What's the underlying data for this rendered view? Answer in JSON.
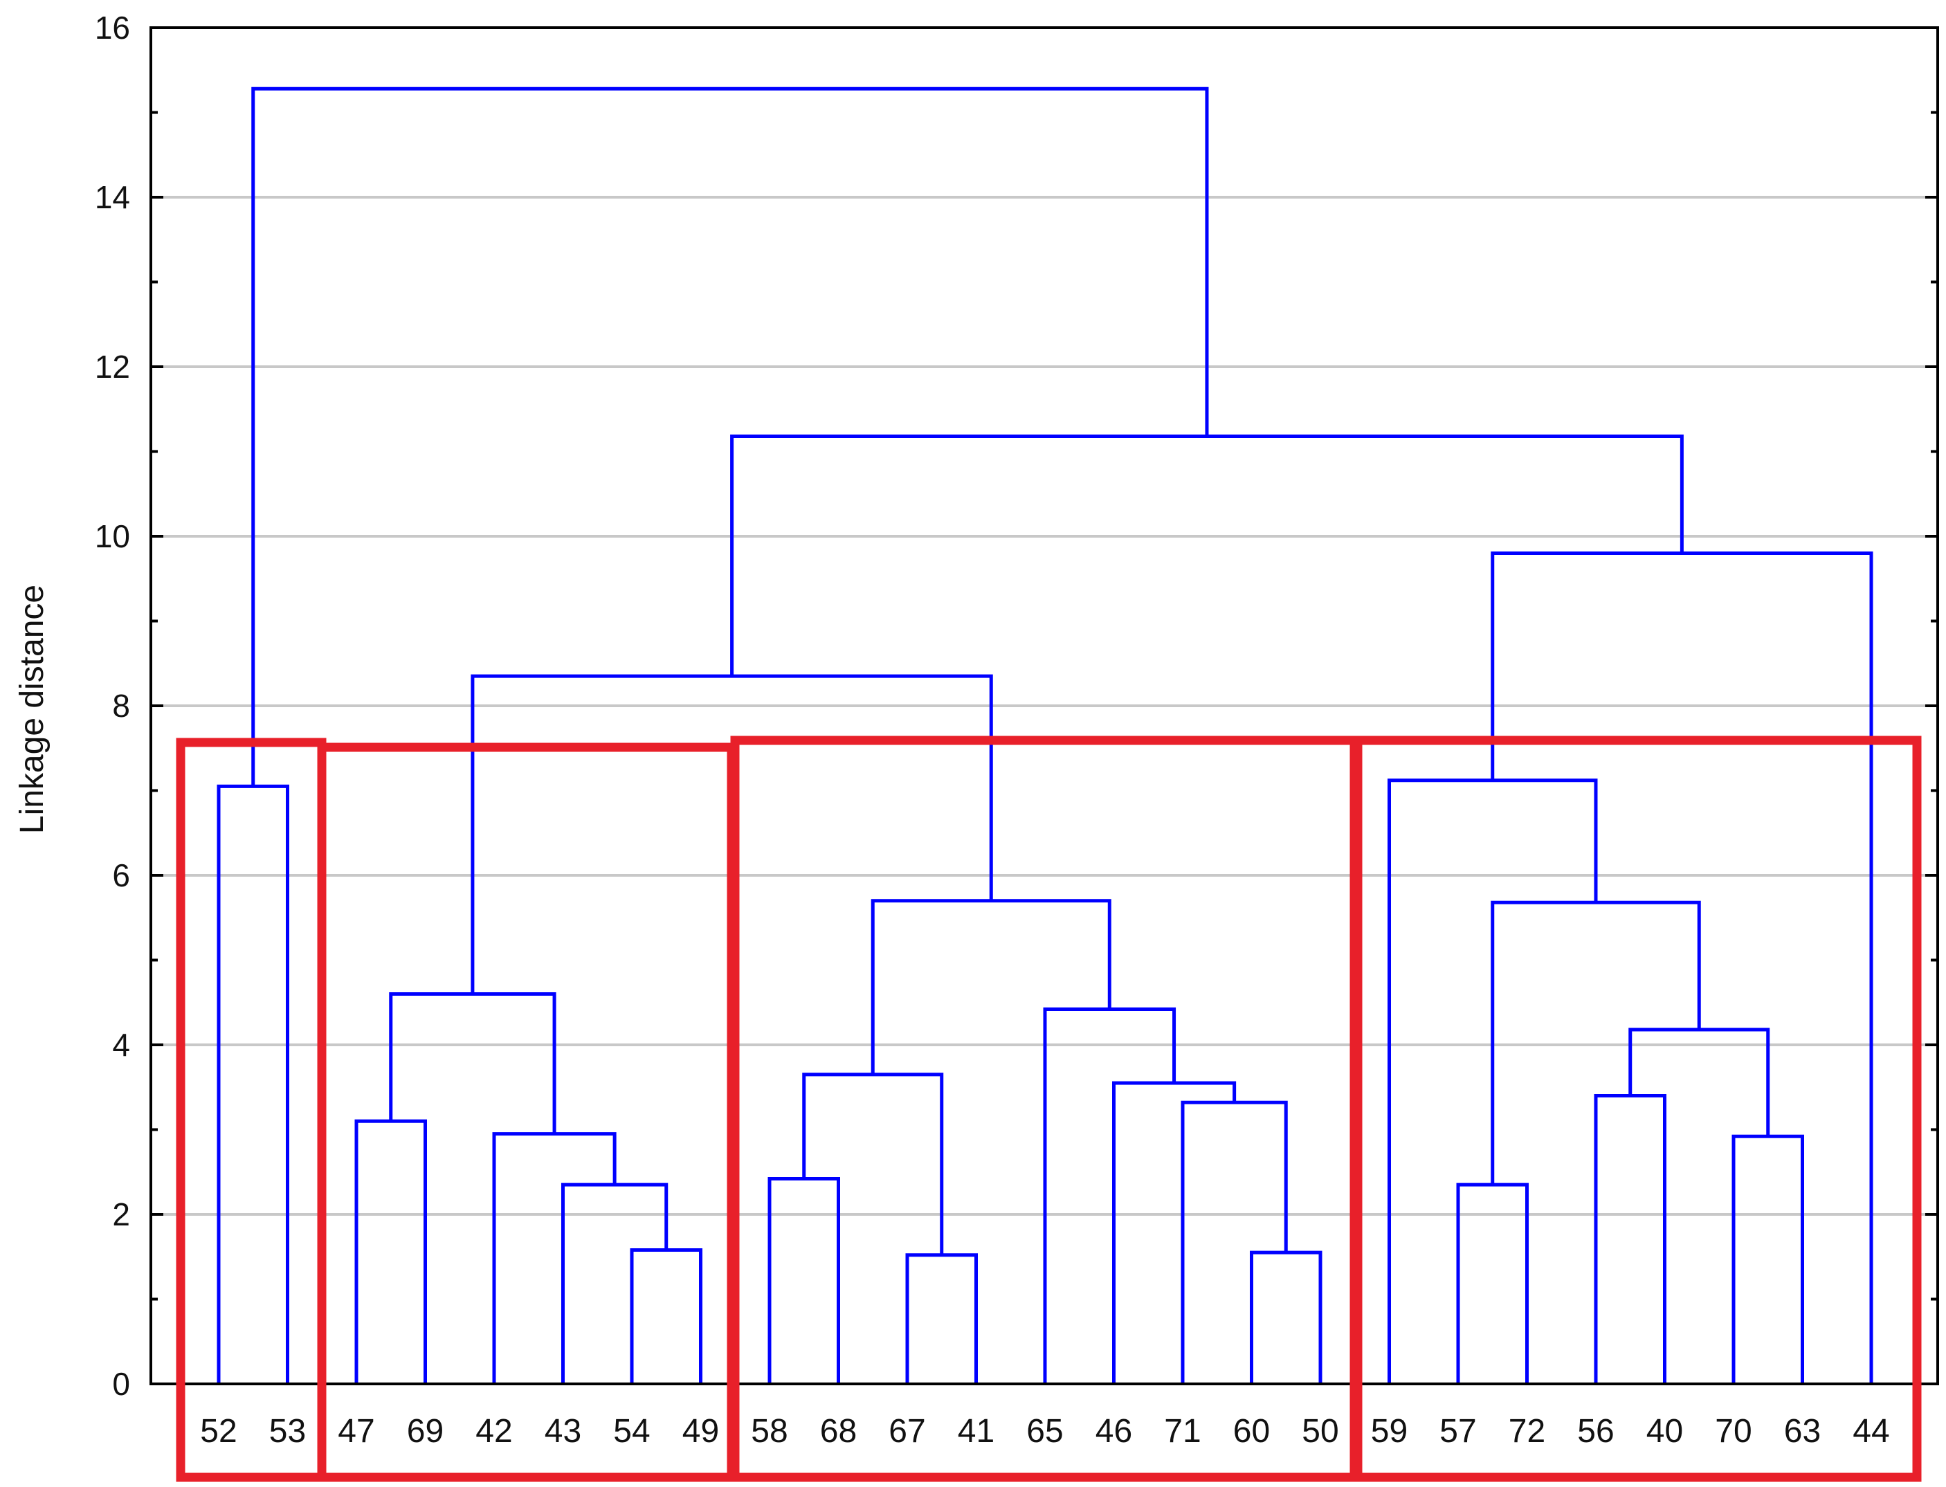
{
  "chart_data": {
    "type": "dendrogram",
    "title": "",
    "xlabel": "",
    "ylabel": "Linkage distance",
    "ylim": [
      0,
      16
    ],
    "yticks": [
      0,
      2,
      4,
      6,
      8,
      10,
      12,
      14,
      16
    ],
    "grid": true,
    "leaves": [
      "52",
      "53",
      "47",
      "69",
      "42",
      "43",
      "54",
      "49",
      "58",
      "68",
      "67",
      "41",
      "65",
      "46",
      "71",
      "60",
      "50",
      "59",
      "57",
      "72",
      "56",
      "40",
      "70",
      "63",
      "44"
    ],
    "merges": [
      {
        "id": "A",
        "left": "52",
        "right": "53",
        "height": 7.05
      },
      {
        "id": "B",
        "left": "47",
        "right": "69",
        "height": 3.1
      },
      {
        "id": "C",
        "left": "54",
        "right": "49",
        "height": 1.58
      },
      {
        "id": "D",
        "left": "43",
        "right": "C",
        "height": 2.35
      },
      {
        "id": "E",
        "left": "42",
        "right": "D",
        "height": 2.95
      },
      {
        "id": "F",
        "left": "B",
        "right": "E",
        "height": 4.6
      },
      {
        "id": "G",
        "left": "58",
        "right": "68",
        "height": 2.42
      },
      {
        "id": "H",
        "left": "67",
        "right": "41",
        "height": 1.52
      },
      {
        "id": "I",
        "left": "G",
        "right": "H",
        "height": 3.65
      },
      {
        "id": "J",
        "left": "60",
        "right": "50",
        "height": 1.55
      },
      {
        "id": "K",
        "left": "71",
        "right": "J",
        "height": 3.32
      },
      {
        "id": "L",
        "left": "46",
        "right": "K",
        "height": 3.55
      },
      {
        "id": "M",
        "left": "65",
        "right": "L",
        "height": 4.42
      },
      {
        "id": "N",
        "left": "I",
        "right": "M",
        "height": 5.7
      },
      {
        "id": "O",
        "left": "F",
        "right": "N",
        "height": 8.35
      },
      {
        "id": "P",
        "left": "57",
        "right": "72",
        "height": 2.35
      },
      {
        "id": "Q",
        "left": "56",
        "right": "40",
        "height": 3.4
      },
      {
        "id": "R",
        "left": "70",
        "right": "63",
        "height": 2.92
      },
      {
        "id": "S",
        "left": "Q",
        "right": "R",
        "height": 4.18
      },
      {
        "id": "T",
        "left": "P",
        "right": "S",
        "height": 5.68
      },
      {
        "id": "U",
        "left": "59",
        "right": "T",
        "height": 7.12
      },
      {
        "id": "V",
        "left": "U",
        "right": "44",
        "height": 9.8
      },
      {
        "id": "W",
        "left": "O",
        "right": "V",
        "height": 11.18
      },
      {
        "id": "X",
        "left": "A",
        "right": "W",
        "height": 15.28
      }
    ],
    "cluster_boxes": [
      {
        "leaves": [
          "52",
          "53"
        ]
      },
      {
        "leaves": [
          "47",
          "69",
          "42",
          "43",
          "54",
          "49"
        ]
      },
      {
        "leaves": [
          "58",
          "68",
          "67",
          "41",
          "65",
          "46",
          "71",
          "60",
          "50"
        ]
      },
      {
        "leaves": [
          "59",
          "57",
          "72",
          "56",
          "40",
          "70",
          "63",
          "44"
        ]
      }
    ],
    "colors": {
      "tree": "#0000ff",
      "grid": "#c8c8c8",
      "axis": "#000000",
      "box": "#e8202a",
      "background": "#ffffff"
    }
  }
}
